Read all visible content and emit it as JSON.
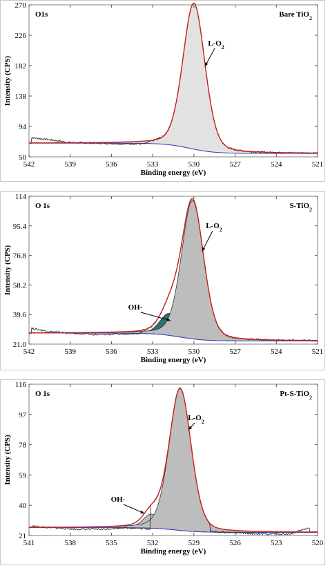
{
  "colors": {
    "envelope": "#cc1f1f",
    "background": "#3344cc",
    "raw": "#333333",
    "lattice_fill": "#bdbdbd",
    "lattice_fill_light": "#e2e2e2",
    "hydroxyl_fill": "#2f6f6f"
  },
  "chart_data": [
    {
      "type": "line",
      "corner_label": "O1s",
      "sample_label": "Bare TiO₂",
      "xlabel": "Binding energy (eV)",
      "ylabel": "Intensity (CPS)",
      "xlim": [
        542,
        521
      ],
      "ylim": [
        50,
        272
      ],
      "x_ticks": [
        "542",
        "539",
        "536",
        "533",
        "530",
        "527",
        "524",
        "521"
      ],
      "y_ticks": [
        "50",
        "94",
        "138",
        "182",
        "226",
        "270"
      ],
      "baseline": {
        "left": 70,
        "right": 55,
        "step_center": 530.3
      },
      "components": [
        {
          "label": "L-O₂",
          "center": 530.0,
          "height": 213,
          "fwhm": 1.9,
          "fill": "light"
        }
      ],
      "raw_noise": [
        [
          541.8,
          78
        ],
        [
          540.5,
          75
        ],
        [
          539,
          71
        ],
        [
          537,
          70
        ],
        [
          535,
          69
        ],
        [
          533.6,
          69
        ],
        [
          532.2,
          80
        ]
      ],
      "annotations": [
        {
          "text": "L-O₂",
          "arrow_to": [
            529.2,
            182
          ]
        }
      ]
    },
    {
      "type": "line",
      "corner_label": "O 1s",
      "sample_label": "S-TiO₂",
      "xlabel": "Binding energy (eV)",
      "ylabel": "Intensity (CPS)",
      "xlim": [
        542,
        521
      ],
      "ylim": [
        21,
        115
      ],
      "x_ticks": [
        "542",
        "539",
        "536",
        "533",
        "530",
        "527",
        "524",
        "521"
      ],
      "y_ticks": [
        "21.0",
        "39.6",
        "58.2",
        "76.8",
        "95.4",
        "114"
      ],
      "baseline": {
        "left": 28,
        "right": 23,
        "step_center": 531
      },
      "components": [
        {
          "label": "OH-",
          "center": 531.8,
          "height": 14,
          "fwhm": 1.6,
          "fill": "hydroxyl"
        },
        {
          "label": "L-O₂",
          "center": 530.1,
          "height": 88,
          "fwhm": 1.9,
          "fill": "lattice"
        }
      ],
      "raw_noise": [
        [
          541.8,
          31
        ],
        [
          540.5,
          29
        ],
        [
          539,
          28
        ],
        [
          537,
          27
        ],
        [
          535,
          27.5
        ],
        [
          533.8,
          28
        ]
      ],
      "annotations": [
        {
          "text": "OH-",
          "arrow_to": [
            531.7,
            36
          ]
        },
        {
          "text": "L-O₂",
          "arrow_to": [
            529.4,
            80
          ]
        }
      ]
    },
    {
      "type": "line",
      "corner_label": "O 1s",
      "sample_label": "Pt-S-TiO₂",
      "xlabel": "Binding energy (eV)",
      "ylabel": "Intensity (CPS)",
      "xlim": [
        541,
        520
      ],
      "ylim": [
        21,
        117
      ],
      "x_ticks": [
        "541",
        "538",
        "535",
        "532",
        "529",
        "526",
        "523",
        "520"
      ],
      "y_ticks": [
        "21",
        "40",
        "59",
        "78",
        "97",
        "116"
      ],
      "baseline": {
        "left": 26,
        "right": 23,
        "step_center": 530.3
      },
      "components": [
        {
          "label": "OH-",
          "center": 532.1,
          "height": 9,
          "fwhm": 1.4,
          "fill": "lattice"
        },
        {
          "label": "L-O₂",
          "center": 530.0,
          "height": 90,
          "fwhm": 1.9,
          "fill": "lattice"
        }
      ],
      "raw_noise": [
        [
          540.8,
          27
        ],
        [
          539.5,
          26
        ],
        [
          537.5,
          25
        ],
        [
          535.5,
          25
        ],
        [
          534.2,
          26
        ],
        [
          524,
          22
        ],
        [
          522,
          22
        ],
        [
          520.6,
          26
        ]
      ],
      "annotations": [
        {
          "text": "OH-",
          "arrow_to": [
            532.6,
            35
          ]
        },
        {
          "text": "L-O₂",
          "arrow_to": [
            529.4,
            88
          ]
        }
      ]
    }
  ]
}
